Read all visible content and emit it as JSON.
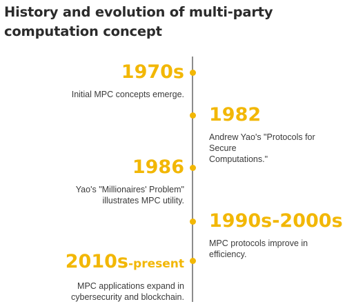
{
  "title": "History and evolution of multi-party computation concept",
  "colors": {
    "accent": "#f2b705",
    "line": "#8c8c8c",
    "text": "#3a3a3a",
    "title": "#2b2b2b"
  },
  "timeline": [
    {
      "year": "1970s",
      "year_suffix": "",
      "desc": [
        "Initial MPC concepts emerge."
      ]
    },
    {
      "year": "1982",
      "year_suffix": "",
      "desc": [
        "Andrew Yao's \"Protocols for Secure",
        "Computations.\""
      ]
    },
    {
      "year": "1986",
      "year_suffix": "",
      "desc": [
        "Yao's \"Millionaires' Problem\"",
        "illustrates MPC utility."
      ]
    },
    {
      "year": "1990s-2000s",
      "year_suffix": "",
      "desc": [
        "MPC protocols improve in efficiency."
      ]
    },
    {
      "year": "2010s",
      "year_suffix": "-present",
      "desc": [
        "MPC applications expand in",
        "cybersecurity and blockchain."
      ]
    }
  ]
}
